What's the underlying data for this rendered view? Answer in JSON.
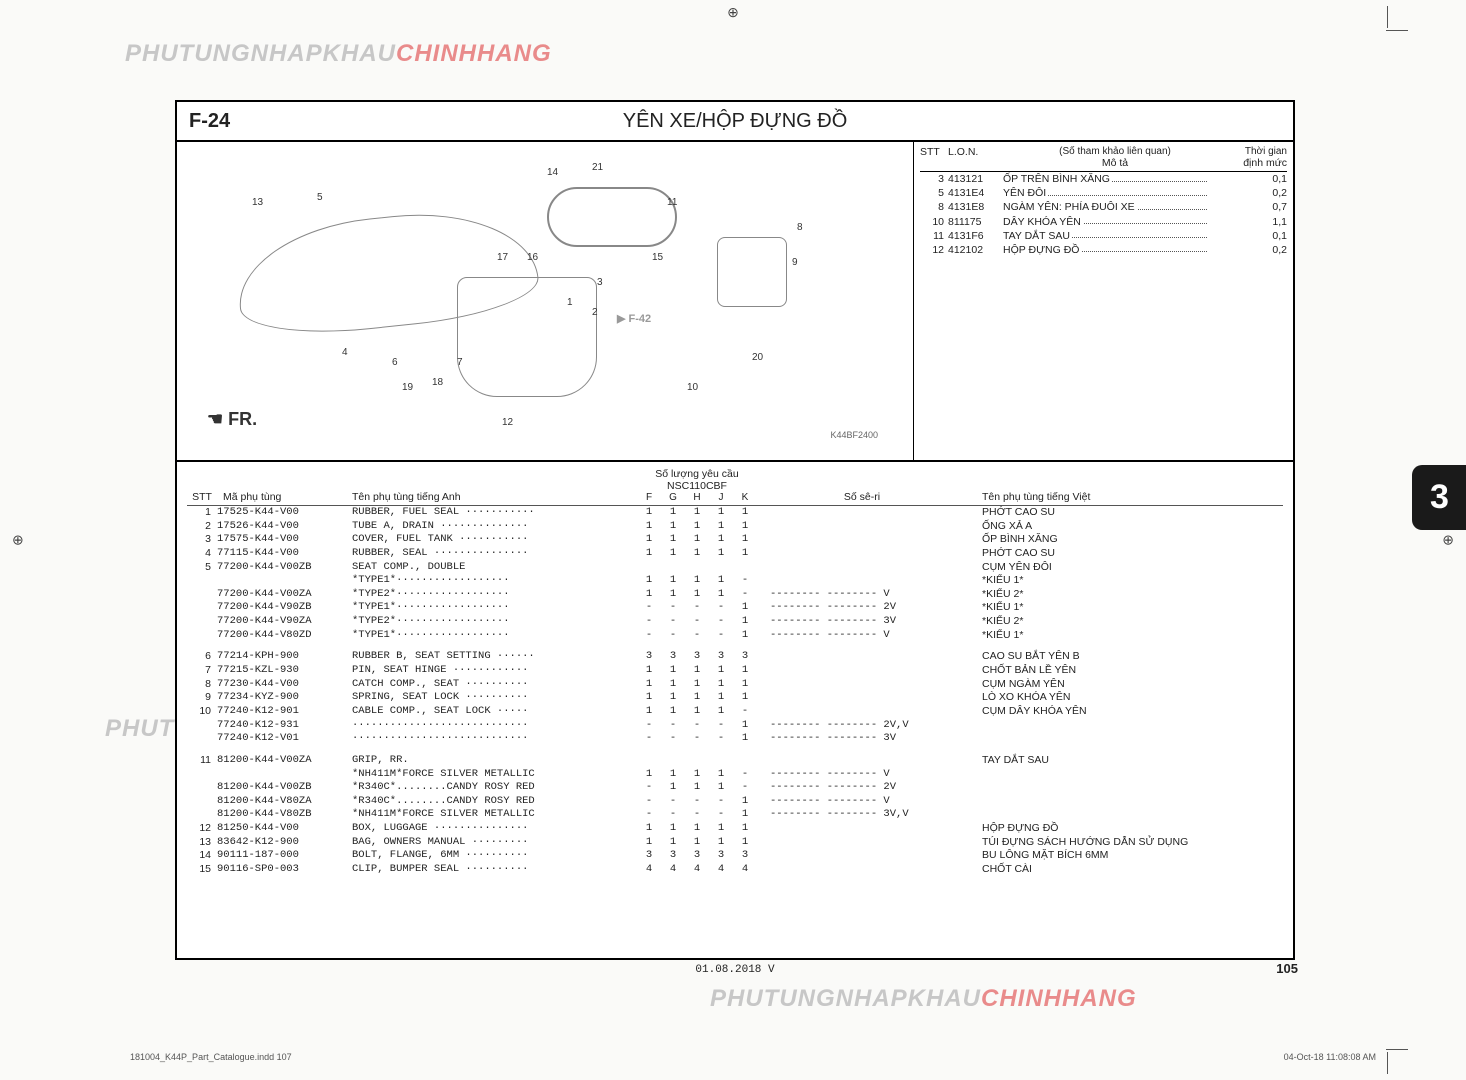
{
  "watermark": {
    "part_a": "PHUTUNGNHAPKHAU",
    "part_b": "CHINHHANG"
  },
  "section_code": "F-24",
  "page_title": "YÊN XE/HỘP ĐỰNG ĐỒ",
  "ref_header": {
    "stt": "STT",
    "lon": "L.O.N.",
    "desc_top": "(Số tham khảo liên quan)",
    "desc_mid": "Mô tả",
    "time_top": "Thời gian",
    "time_mid": "định mức"
  },
  "ref_rows": [
    {
      "stt": "3",
      "lon": "413121",
      "desc": "ỐP TRÊN BÌNH XĂNG",
      "time": "0,1"
    },
    {
      "stt": "5",
      "lon": "4131E4",
      "desc": "YÊN ĐÔI",
      "time": "0,2"
    },
    {
      "stt": "8",
      "lon": "4131E8",
      "desc": "NGÀM YÊN: PHÍA ĐUÔI XE",
      "time": "0,7"
    },
    {
      "stt": "10",
      "lon": "811175",
      "desc": "DÂY KHÓA YÊN",
      "time": "1,1"
    },
    {
      "stt": "11",
      "lon": "4131F6",
      "desc": "TAY DẮT SAU",
      "time": "0,1"
    },
    {
      "stt": "12",
      "lon": "412102",
      "desc": "HỘP ĐỰNG ĐỒ",
      "time": "0,2"
    }
  ],
  "diagram": {
    "callouts": [
      "1",
      "2",
      "3",
      "4",
      "5",
      "6",
      "7",
      "8",
      "9",
      "10",
      "11",
      "12",
      "13",
      "14",
      "15",
      "16",
      "17",
      "18",
      "19",
      "20",
      "21"
    ],
    "fr_label": "FR.",
    "link_label": "F-42",
    "ref_code": "K44BF2400"
  },
  "parts_header": {
    "stt": "STT",
    "code": "Mã phụ tùng",
    "name_en": "Tên phụ tùng tiếng Anh",
    "qty_title": "Số lượng yêu cầu",
    "qty_model": "NSC110CBF",
    "qty_cols": [
      "F",
      "G",
      "H",
      "J",
      "K"
    ],
    "seri": "Số sê-ri",
    "name_vn": "Tên phụ tùng tiếng Việt"
  },
  "parts": [
    {
      "g": 0,
      "stt": "1",
      "code": "17525-K44-V00",
      "en": "RUBBER, FUEL SEAL ···········",
      "q": [
        "1",
        "1",
        "1",
        "1",
        "1"
      ],
      "seri": "",
      "vn": "PHỚT CAO SU"
    },
    {
      "g": 0,
      "stt": "2",
      "code": "17526-K44-V00",
      "en": "TUBE A, DRAIN ··············",
      "q": [
        "1",
        "1",
        "1",
        "1",
        "1"
      ],
      "seri": "",
      "vn": "ỐNG XẢ A"
    },
    {
      "g": 0,
      "stt": "3",
      "code": "17575-K44-V00",
      "en": "COVER, FUEL TANK ···········",
      "q": [
        "1",
        "1",
        "1",
        "1",
        "1"
      ],
      "seri": "",
      "vn": "ỐP BÌNH XĂNG"
    },
    {
      "g": 0,
      "stt": "4",
      "code": "77115-K44-V00",
      "en": "RUBBER, SEAL ···············",
      "q": [
        "1",
        "1",
        "1",
        "1",
        "1"
      ],
      "seri": "",
      "vn": "PHỚT CAO SU"
    },
    {
      "g": 0,
      "stt": "5",
      "code": "77200-K44-V00ZB",
      "en": "SEAT COMP., DOUBLE",
      "q": [
        "",
        "",
        "",
        "",
        ""
      ],
      "seri": "",
      "vn": "CỤM YÊN ĐÔI"
    },
    {
      "g": 0,
      "stt": "",
      "code": "",
      "en": "  *TYPE1*··················",
      "q": [
        "1",
        "1",
        "1",
        "1",
        "-"
      ],
      "seri": "",
      "vn": "*KIỂU 1*"
    },
    {
      "g": 0,
      "stt": "",
      "code": "77200-K44-V00ZA",
      "en": "  *TYPE2*··················",
      "q": [
        "1",
        "1",
        "1",
        "1",
        "-"
      ],
      "seri": "-------- -------- V",
      "vn": "*KIỂU 2*"
    },
    {
      "g": 0,
      "stt": "",
      "code": "77200-K44-V90ZB",
      "en": "  *TYPE1*··················",
      "q": [
        "-",
        "-",
        "-",
        "-",
        "1"
      ],
      "seri": "-------- -------- 2V",
      "vn": "*KIỂU 1*"
    },
    {
      "g": 0,
      "stt": "",
      "code": "77200-K44-V90ZA",
      "en": "  *TYPE2*··················",
      "q": [
        "-",
        "-",
        "-",
        "-",
        "1"
      ],
      "seri": "-------- -------- 3V",
      "vn": "*KIỂU 2*"
    },
    {
      "g": 0,
      "stt": "",
      "code": "77200-K44-V80ZD",
      "en": "  *TYPE1*··················",
      "q": [
        "-",
        "-",
        "-",
        "-",
        "1"
      ],
      "seri": "-------- -------- V",
      "vn": "*KIỂU 1*"
    },
    {
      "g": 1,
      "stt": "6",
      "code": "77214-KPH-900",
      "en": "RUBBER B, SEAT SETTING ······",
      "q": [
        "3",
        "3",
        "3",
        "3",
        "3"
      ],
      "seri": "",
      "vn": "CAO SU BẮT YÊN B"
    },
    {
      "g": 1,
      "stt": "7",
      "code": "77215-KZL-930",
      "en": "PIN, SEAT HINGE ············",
      "q": [
        "1",
        "1",
        "1",
        "1",
        "1"
      ],
      "seri": "",
      "vn": "CHỐT BẢN LỀ YÊN"
    },
    {
      "g": 1,
      "stt": "8",
      "code": "77230-K44-V00",
      "en": "CATCH COMP., SEAT ··········",
      "q": [
        "1",
        "1",
        "1",
        "1",
        "1"
      ],
      "seri": "",
      "vn": "CỤM NGÀM YÊN"
    },
    {
      "g": 1,
      "stt": "9",
      "code": "77234-KYZ-900",
      "en": "SPRING, SEAT LOCK ··········",
      "q": [
        "1",
        "1",
        "1",
        "1",
        "1"
      ],
      "seri": "",
      "vn": "LÒ XO KHÓA YÊN"
    },
    {
      "g": 1,
      "stt": "10",
      "code": "77240-K12-901",
      "en": "CABLE COMP., SEAT LOCK ·····",
      "q": [
        "1",
        "1",
        "1",
        "1",
        "-"
      ],
      "seri": "",
      "vn": "CỤM DÂY KHÓA YÊN"
    },
    {
      "g": 1,
      "stt": "",
      "code": "77240-K12-931",
      "en": "····························",
      "q": [
        "-",
        "-",
        "-",
        "-",
        "1"
      ],
      "seri": "-------- -------- 2V,V",
      "vn": ""
    },
    {
      "g": 1,
      "stt": "",
      "code": "77240-K12-V01",
      "en": "····························",
      "q": [
        "-",
        "-",
        "-",
        "-",
        "1"
      ],
      "seri": "-------- -------- 3V",
      "vn": ""
    },
    {
      "g": 2,
      "stt": "11",
      "code": "81200-K44-V00ZA",
      "en": "GRIP, RR.",
      "q": [
        "",
        "",
        "",
        "",
        ""
      ],
      "seri": "",
      "vn": "TAY DẮT SAU"
    },
    {
      "g": 2,
      "stt": "",
      "code": "",
      "en": "  *NH411M*FORCE SILVER METALLIC",
      "q": [
        "1",
        "1",
        "1",
        "1",
        "-"
      ],
      "seri": "-------- -------- V",
      "vn": ""
    },
    {
      "g": 2,
      "stt": "",
      "code": "81200-K44-V00ZB",
      "en": "  *R340C*........CANDY ROSY RED",
      "q": [
        "-",
        "1",
        "1",
        "1",
        "-"
      ],
      "seri": "-------- -------- 2V",
      "vn": ""
    },
    {
      "g": 2,
      "stt": "",
      "code": "81200-K44-V80ZA",
      "en": "  *R340C*........CANDY ROSY RED",
      "q": [
        "-",
        "-",
        "-",
        "-",
        "1"
      ],
      "seri": "-------- -------- V",
      "vn": ""
    },
    {
      "g": 2,
      "stt": "",
      "code": "81200-K44-V80ZB",
      "en": "  *NH411M*FORCE SILVER METALLIC",
      "q": [
        "-",
        "-",
        "-",
        "-",
        "1"
      ],
      "seri": "-------- -------- 3V,V",
      "vn": ""
    },
    {
      "g": 2,
      "stt": "12",
      "code": "81250-K44-V00",
      "en": "BOX, LUGGAGE ···············",
      "q": [
        "1",
        "1",
        "1",
        "1",
        "1"
      ],
      "seri": "",
      "vn": "HỘP ĐỰNG ĐỒ"
    },
    {
      "g": 2,
      "stt": "13",
      "code": "83642-K12-900",
      "en": "BAG, OWNERS MANUAL ·········",
      "q": [
        "1",
        "1",
        "1",
        "1",
        "1"
      ],
      "seri": "",
      "vn": "TÚI ĐỰNG SÁCH HƯỚNG DẪN SỬ DỤNG"
    },
    {
      "g": 2,
      "stt": "14",
      "code": "90111-187-000",
      "en": "BOLT, FLANGE, 6MM ··········",
      "q": [
        "3",
        "3",
        "3",
        "3",
        "3"
      ],
      "seri": "",
      "vn": "BU LÔNG MẶT BÍCH 6MM"
    },
    {
      "g": 2,
      "stt": "15",
      "code": "90116-SP0-003",
      "en": "CLIP, BUMPER SEAL ··········",
      "q": [
        "4",
        "4",
        "4",
        "4",
        "4"
      ],
      "seri": "",
      "vn": "CHỐT CÀI"
    }
  ],
  "footer": {
    "date": "01.08.2018    V",
    "page_no": "105",
    "tab": "3",
    "indd_left": "181004_K44P_Part_Catalogue.indd   107",
    "indd_right": "04-Oct-18   11:08:08 AM"
  }
}
